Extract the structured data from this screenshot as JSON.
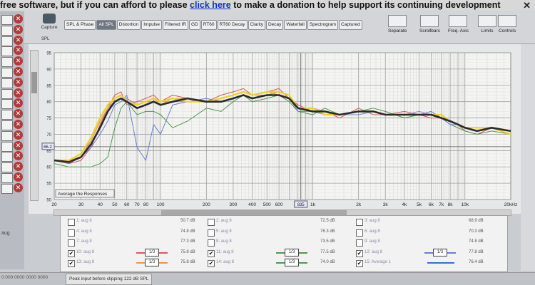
{
  "banner": {
    "text_before": "free software, but if you can afford to please ",
    "link": "click here",
    "text_after": " to make a donation to help support its continuing development",
    "close": "✕"
  },
  "toolbar": {
    "capture": "Capture",
    "tabs": [
      "SPL & Phase",
      "All SPL",
      "Distortion",
      "Impulse",
      "Filtered IR",
      "GD",
      "RT60",
      "RT60 Decay",
      "Clarity",
      "Decay",
      "Waterfall",
      "Spectrogram",
      "Captured"
    ],
    "active_tab": "All SPL",
    "buttons": [
      "Separate",
      "Scrollbars",
      "Freq. Axis",
      "Limits",
      "Controls"
    ]
  },
  "chart_data": {
    "type": "line",
    "ylabel": "SPL",
    "xscale": "log",
    "xlim": [
      20,
      20000
    ],
    "ylim": [
      50,
      95
    ],
    "x_tick_labels": [
      {
        "f": 20,
        "t": "20"
      },
      {
        "f": 30,
        "t": "30"
      },
      {
        "f": 40,
        "t": "40"
      },
      {
        "f": 50,
        "t": "50"
      },
      {
        "f": 60,
        "t": "60"
      },
      {
        "f": 70,
        "t": "70"
      },
      {
        "f": 80,
        "t": "80"
      },
      {
        "f": 100,
        "t": "100"
      },
      {
        "f": 200,
        "t": "200"
      },
      {
        "f": 300,
        "t": "300"
      },
      {
        "f": 400,
        "t": "400"
      },
      {
        "f": 500,
        "t": "500"
      },
      {
        "f": 600,
        "t": "600"
      },
      {
        "f": 1000,
        "t": "1k"
      },
      {
        "f": 2000,
        "t": "2k"
      },
      {
        "f": 3000,
        "t": "3k"
      },
      {
        "f": 4000,
        "t": "4k"
      },
      {
        "f": 5000,
        "t": "5k"
      },
      {
        "f": 6000,
        "t": "6k"
      },
      {
        "f": 7000,
        "t": "7k"
      },
      {
        "f": 8000,
        "t": "8k"
      },
      {
        "f": 10000,
        "t": "10k"
      },
      {
        "f": 20000,
        "t": "20kHz"
      }
    ],
    "y_ticks": [
      50,
      55,
      60,
      65,
      70,
      75,
      80,
      85,
      90,
      95
    ],
    "cursor_y": "66.2",
    "cursor_x_label": "835",
    "cursor_x": 835,
    "overlay_label": "Average the Responses",
    "x": [
      20,
      25,
      30,
      35,
      40,
      45,
      50,
      55,
      60,
      70,
      80,
      90,
      100,
      120,
      150,
      200,
      250,
      300,
      350,
      400,
      500,
      600,
      700,
      800,
      1000,
      1200,
      1500,
      2000,
      2500,
      3000,
      4000,
      5000,
      6000,
      7000,
      8000,
      9000,
      10000,
      12000,
      15000,
      20000
    ],
    "series": [
      {
        "color": "#2a2a2a",
        "width": 2.6,
        "values": [
          62,
          61.5,
          63,
          67,
          72,
          77,
          80,
          81,
          80,
          78,
          79,
          80,
          79,
          80,
          81,
          80,
          80,
          81,
          82,
          81,
          82,
          82,
          81,
          78,
          77,
          77,
          76,
          77,
          77,
          76,
          76,
          76,
          76,
          75,
          74,
          73,
          72,
          71,
          72,
          71
        ]
      },
      {
        "color": "#f0d020",
        "width": 2.2,
        "values": [
          62,
          62,
          64,
          69,
          75,
          79,
          81,
          82,
          80,
          79,
          80,
          81,
          80,
          81,
          80,
          80,
          81,
          82,
          83,
          82,
          83,
          83,
          82,
          78,
          78,
          76,
          76,
          77,
          77,
          76,
          76,
          76,
          76,
          76,
          74,
          73,
          72,
          72,
          72,
          70
        ]
      },
      {
        "color": "#d85a5a",
        "width": 1,
        "values": [
          62,
          61,
          62,
          66,
          73,
          78,
          82,
          83,
          79,
          80,
          81,
          82,
          80,
          82,
          81,
          80,
          82,
          83,
          84,
          82,
          83,
          84,
          81,
          79,
          77,
          77,
          75,
          78,
          76,
          76,
          77,
          76,
          75,
          75,
          74,
          73,
          71,
          70,
          72,
          71
        ]
      },
      {
        "color": "#4a9c4a",
        "width": 1,
        "values": [
          61,
          60,
          60,
          60,
          61,
          63,
          72,
          78,
          80,
          76,
          77,
          77,
          76,
          72,
          74,
          78,
          77,
          80,
          82,
          80,
          81,
          82,
          80,
          77,
          76,
          78,
          76,
          77,
          78,
          77,
          75,
          76,
          76,
          75,
          73,
          72,
          71,
          70,
          71,
          70
        ]
      },
      {
        "color": "#6a7ed0",
        "width": 1,
        "values": [
          62,
          61,
          63,
          66,
          70,
          74,
          79,
          80,
          82,
          66,
          62,
          73,
          70,
          79,
          80,
          81,
          80,
          81,
          82,
          81,
          82,
          82,
          81,
          77,
          77,
          76,
          76,
          76,
          77,
          76,
          76,
          76,
          77,
          75,
          73,
          73,
          72,
          71,
          72,
          71
        ]
      },
      {
        "color": "#b07ad0",
        "width": 1,
        "values": [
          62,
          62,
          64,
          68,
          74,
          78,
          80,
          81,
          81,
          79,
          80,
          80,
          79,
          80,
          80,
          80,
          81,
          82,
          83,
          82,
          82,
          83,
          82,
          78,
          78,
          77,
          76,
          77,
          77,
          76,
          76,
          77,
          76,
          75,
          74,
          73,
          72,
          71,
          72,
          71
        ]
      },
      {
        "color": "#e0a040",
        "width": 1,
        "values": [
          62,
          62,
          63,
          68,
          74,
          78,
          81,
          82,
          80,
          79,
          80,
          81,
          79,
          81,
          81,
          80,
          81,
          82,
          83,
          82,
          83,
          82,
          81,
          78,
          78,
          77,
          76,
          77,
          77,
          76,
          76,
          76,
          76,
          75,
          74,
          73,
          72,
          71,
          72,
          71
        ]
      }
    ]
  },
  "legend": {
    "items": [
      {
        "checked": false,
        "check": "",
        "name": "1: aug 8",
        "value": "50.7 dB",
        "col": 0,
        "row": 0
      },
      {
        "checked": false,
        "check": "",
        "name": "2: aug 8",
        "value": "72.5 dB",
        "col": 1,
        "row": 0
      },
      {
        "checked": false,
        "check": "",
        "name": "3: aug 8",
        "value": "68.9 dB",
        "col": 2,
        "row": 0
      },
      {
        "checked": false,
        "check": "",
        "name": "4: aug 8",
        "value": "74.8 dB",
        "col": 0,
        "row": 1
      },
      {
        "checked": false,
        "check": "",
        "name": "5: aug 8",
        "value": "76.3 dB",
        "col": 1,
        "row": 1
      },
      {
        "checked": false,
        "check": "",
        "name": "6: aug 8",
        "value": "70.3 dB",
        "col": 2,
        "row": 1
      },
      {
        "checked": false,
        "check": "",
        "name": "7: aug 8",
        "value": "77.3 dB",
        "col": 0,
        "row": 2
      },
      {
        "checked": false,
        "check": "",
        "name": "8: aug 8",
        "value": "73.5 dB",
        "col": 1,
        "row": 2
      },
      {
        "checked": false,
        "check": "",
        "name": "9: aug 8",
        "value": "74.8 dB",
        "col": 2,
        "row": 2
      },
      {
        "checked": true,
        "check": "✔",
        "name": "10: aug 8",
        "value": "75.8 dB",
        "smoothing": "1/3",
        "col": 0,
        "row": 3,
        "color": "#d85a5a"
      },
      {
        "checked": true,
        "check": "✔",
        "name": "11: aug 8",
        "value": "77.5 dB",
        "smoothing": "1/3",
        "col": 1,
        "row": 3,
        "color": "#4a9c4a"
      },
      {
        "checked": true,
        "check": "✔",
        "name": "12: aug 8",
        "value": "77.8 dB",
        "smoothing": "1/3",
        "col": 2,
        "row": 3,
        "color": "#6a7ed0"
      },
      {
        "checked": true,
        "check": "✔",
        "name": "13: aug 8",
        "value": "75.8 dB",
        "smoothing": "1/3",
        "col": 0,
        "row": 4,
        "color": "#e0a040"
      },
      {
        "checked": true,
        "check": "✔",
        "name": "14: aug 8",
        "value": "74.0 dB",
        "smoothing": "1/3",
        "col": 1,
        "row": 4,
        "color": "#4a9c4a"
      },
      {
        "checked": true,
        "check": "✔",
        "name": "15: Average 1",
        "value": "76.4 dB",
        "col": 2,
        "row": 4,
        "color": "#3a6ed0"
      }
    ]
  },
  "status": {
    "left": "0:000:0000 0000 0000",
    "peak": "Peak input before clipping 122 dB SPL"
  },
  "side_label": "aug"
}
